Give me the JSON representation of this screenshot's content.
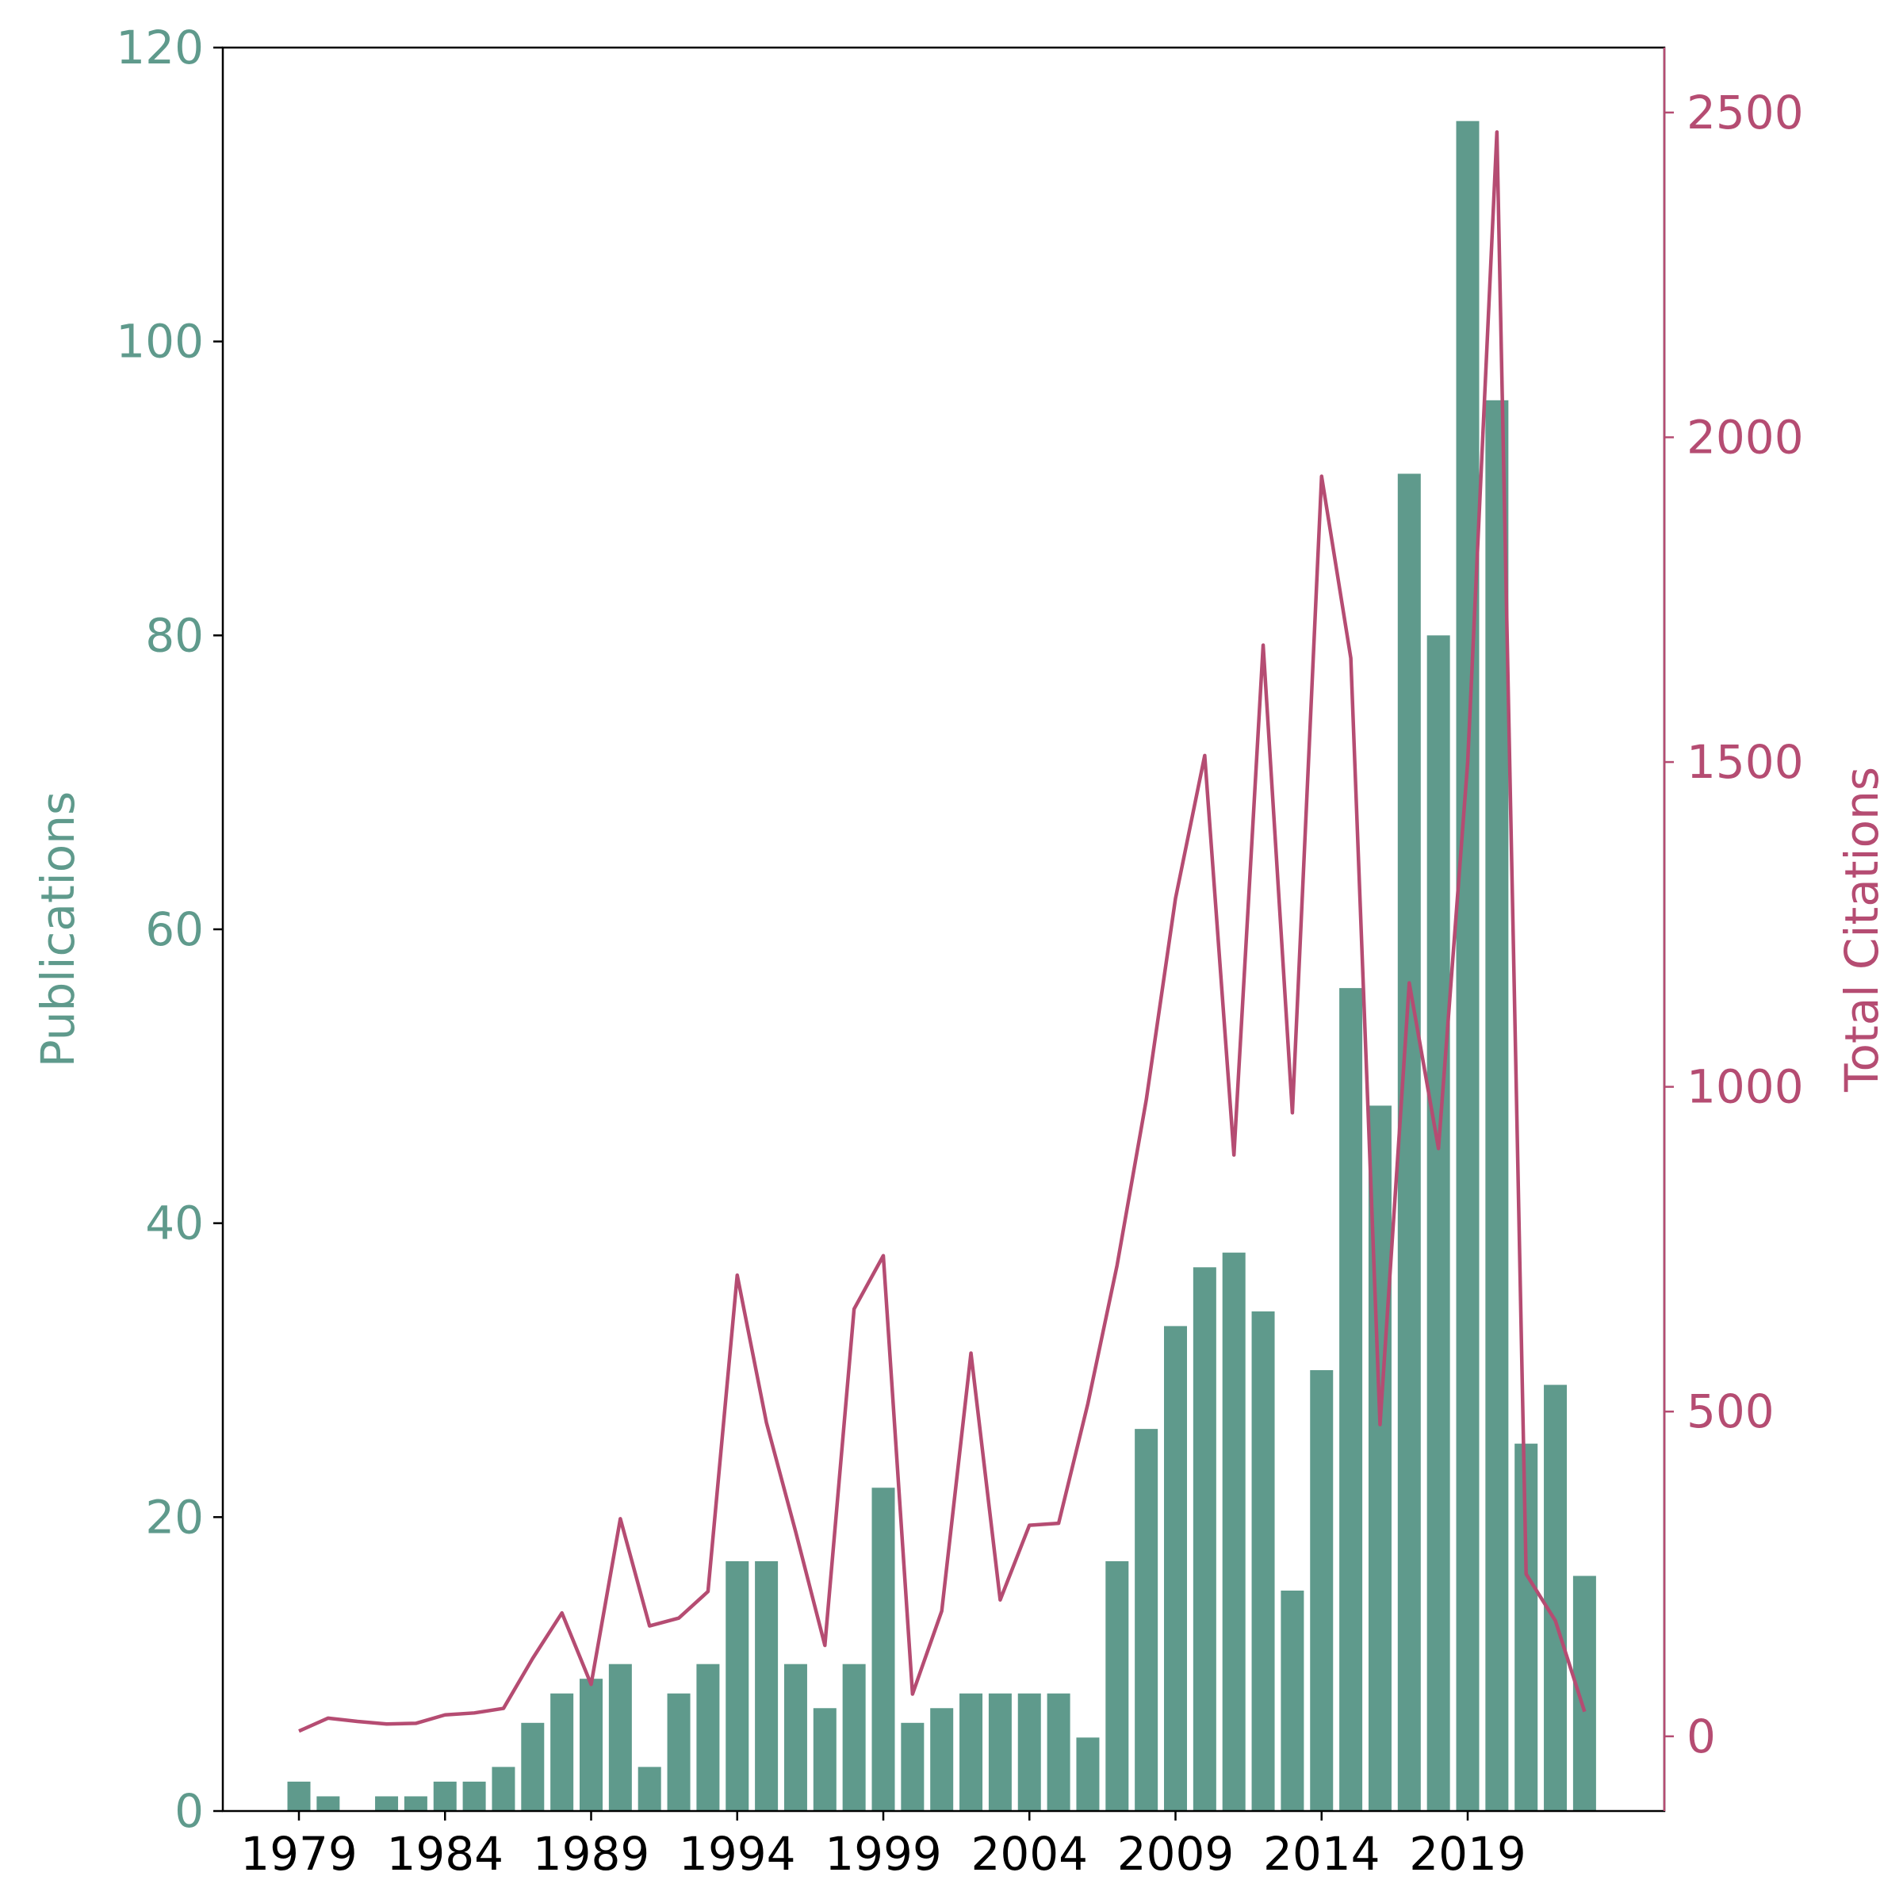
{
  "chart_data": {
    "type": "bar+line",
    "colors": {
      "bars": "#5f9a8c",
      "line": "#b54c72",
      "frame": "#000000"
    },
    "years": [
      1979,
      1980,
      1981,
      1982,
      1983,
      1984,
      1985,
      1986,
      1987,
      1988,
      1989,
      1990,
      1991,
      1992,
      1993,
      1994,
      1995,
      1996,
      1997,
      1998,
      1999,
      2000,
      2001,
      2002,
      2003,
      2004,
      2005,
      2006,
      2007,
      2008,
      2009,
      2010,
      2011,
      2012,
      2013,
      2014,
      2015,
      2016,
      2017,
      2018,
      2019,
      2020,
      2021,
      2022,
      2023
    ],
    "x_tick_labels": [
      "1979",
      "1984",
      "1989",
      "1994",
      "1999",
      "2004",
      "2009",
      "2014",
      "2019"
    ],
    "publications": {
      "name": "Publications",
      "axis": "left",
      "ylim": [
        0,
        120
      ],
      "ticks": [
        "0",
        "20",
        "40",
        "60",
        "80",
        "100",
        "120"
      ],
      "values": [
        2,
        1,
        0,
        1,
        1,
        2,
        2,
        3,
        6,
        8,
        9,
        10,
        3,
        8,
        10,
        17,
        17,
        10,
        7,
        10,
        22,
        6,
        7,
        8,
        8,
        8,
        8,
        5,
        17,
        26,
        33,
        37,
        38,
        34,
        15,
        30,
        56,
        48,
        91,
        80,
        115,
        96,
        25,
        29,
        16
      ]
    },
    "citations": {
      "name": "Total Citations",
      "axis": "right",
      "ylim": [
        -115,
        2600
      ],
      "ticks": [
        "0",
        "500",
        "1000",
        "1500",
        "2000",
        "2500"
      ],
      "values": [
        8,
        28,
        23,
        19,
        20,
        33,
        36,
        43,
        120,
        190,
        80,
        335,
        170,
        182,
        223,
        710,
        483,
        315,
        140,
        658,
        740,
        65,
        193,
        590,
        210,
        325,
        328,
        512,
        725,
        980,
        1290,
        1510,
        895,
        1680,
        960,
        1940,
        1660,
        480,
        1160,
        905,
        1500,
        2470,
        250,
        178,
        38
      ]
    }
  }
}
